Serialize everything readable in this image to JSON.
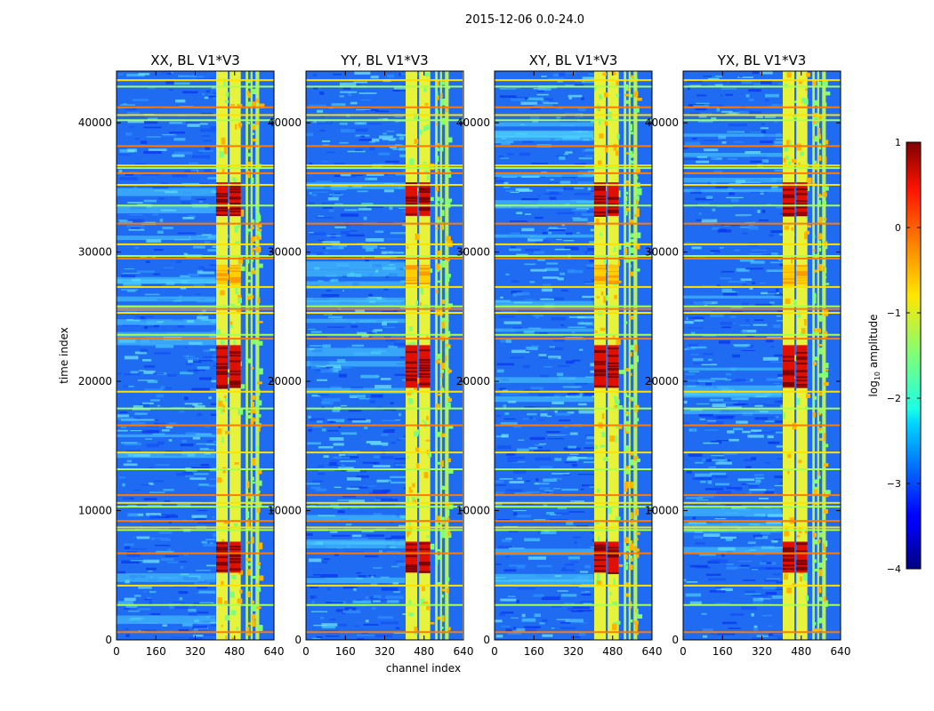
{
  "figure": {
    "suptitle": "2015-12-06 0.0-24.0",
    "xlabel": "channel index",
    "ylabel": "time index"
  },
  "chart_data": {
    "type": "heatmap",
    "colormap": "jet",
    "x_range": [
      0,
      640
    ],
    "y_range": [
      0,
      44000
    ],
    "xticks": [
      0,
      160,
      320,
      480,
      640
    ],
    "yticks": [
      0,
      10000,
      20000,
      30000,
      40000
    ],
    "panels": [
      {
        "title": "XX, BL V1*V3"
      },
      {
        "title": "YY, BL V1*V3"
      },
      {
        "title": "XY, BL V1*V3"
      },
      {
        "title": "YX, BL V1*V3"
      }
    ],
    "rfi_channel_bands": [
      [
        405,
        452
      ],
      [
        460,
        505
      ],
      [
        525,
        535
      ],
      [
        545,
        553
      ],
      [
        565,
        580
      ]
    ],
    "strong_rfi_time_bands": [
      [
        5200,
        7600
      ],
      [
        19500,
        22800
      ],
      [
        32800,
        35400
      ],
      [
        27500,
        29000
      ]
    ],
    "rfi_time_lines": [
      600,
      2700,
      4200,
      6700,
      8500,
      8700,
      9200,
      10300,
      10600,
      11200,
      13200,
      14500,
      16600,
      17900,
      19200,
      23300,
      23600,
      25300,
      25600,
      25800,
      27300,
      29500,
      29700,
      30600,
      32200,
      33600,
      35200,
      36100,
      36500,
      36700,
      38200,
      40200,
      40600,
      41200,
      42800,
      43300
    ],
    "colorbar": {
      "label": "log10 amplitude",
      "label_base": "log",
      "label_sub": "10",
      "label_rest": " amplitude",
      "range": [
        -4,
        1
      ],
      "ticks": [
        "1",
        "0",
        "−1",
        "−2",
        "−3",
        "−4"
      ]
    }
  }
}
